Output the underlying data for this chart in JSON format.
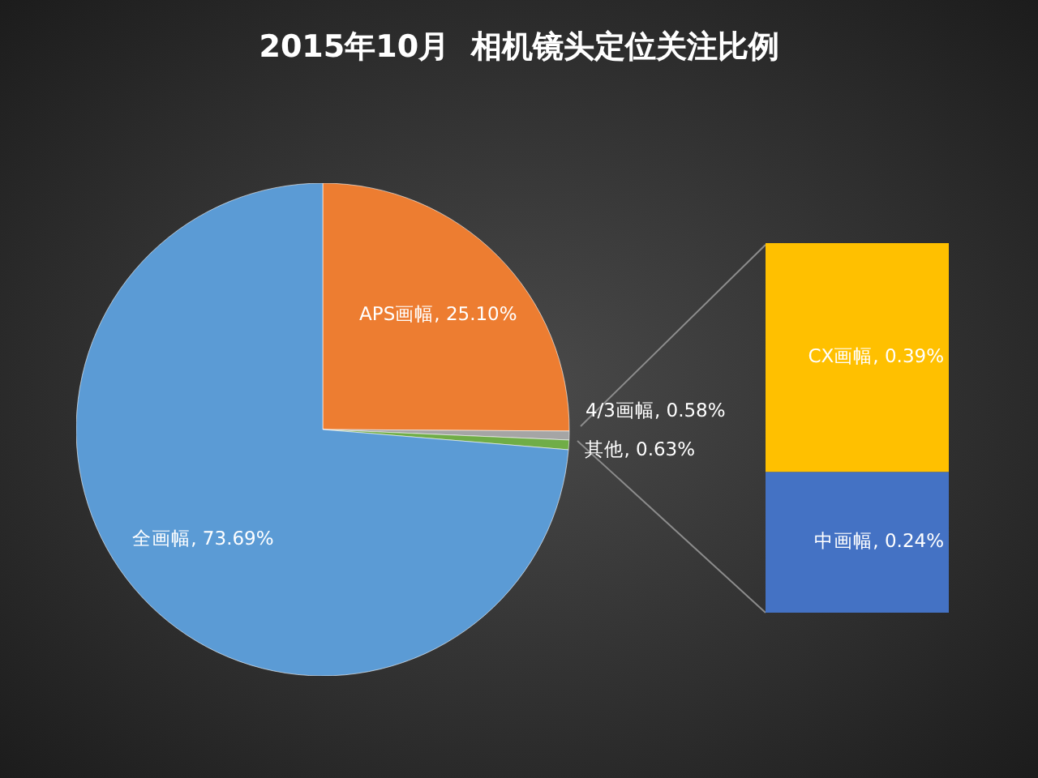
{
  "chart_data": [
    {
      "type": "pie",
      "title": "2015年10月  相机镜头定位关注比例",
      "categories": [
        "APS画幅",
        "4/3画幅",
        "其他",
        "全画幅"
      ],
      "values": [
        25.1,
        0.58,
        0.63,
        73.69
      ],
      "colors": [
        "#ed7d31",
        "#a5a5a5",
        "#70ad47",
        "#5b9bd5"
      ],
      "value_labels": [
        ", 25.10%",
        ", 0.58%",
        ", 0.63%",
        ", 73.69%"
      ]
    },
    {
      "type": "bar",
      "stacked": true,
      "categories": [
        null
      ],
      "series": [
        {
          "name": "中画幅",
          "color": "#4472c4",
          "values": [
            0.24
          ],
          "value_labels": [
            ", 0.24%"
          ]
        },
        {
          "name": "CX画幅",
          "color": "#ffc000",
          "values": [
            0.39
          ],
          "value_labels": [
            ", 0.39%"
          ]
        }
      ]
    }
  ]
}
